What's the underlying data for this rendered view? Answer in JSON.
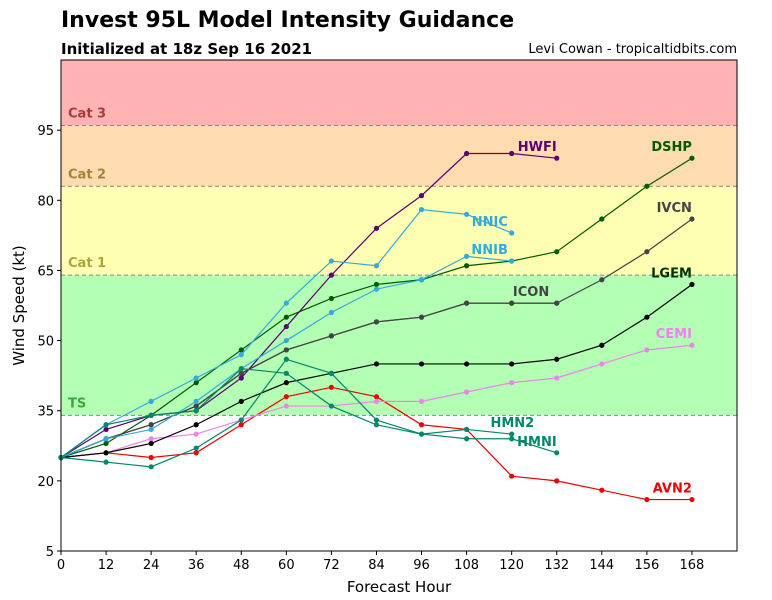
{
  "header": {
    "title": "Invest 95L Model Intensity Guidance",
    "subtitle": "Initialized at 18z Sep 16 2021",
    "credit": "Levi Cowan - tropicaltidbits.com"
  },
  "chart_data": {
    "type": "line",
    "xlabel": "Forecast Hour",
    "ylabel": "Wind Speed (kt)",
    "xlim": [
      0,
      180
    ],
    "ylim": [
      5,
      110
    ],
    "xticks": [
      0,
      12,
      24,
      36,
      48,
      60,
      72,
      84,
      96,
      108,
      120,
      132,
      144,
      156,
      168
    ],
    "yticks": [
      5,
      20,
      35,
      50,
      65,
      80,
      95
    ],
    "grid": false,
    "bands": [
      {
        "label": "TS",
        "from": 34,
        "to": 64,
        "color": "#b3ffb3",
        "label_color": "#3aa83a"
      },
      {
        "label": "Cat 1",
        "from": 64,
        "to": 83,
        "color": "#ffffb3",
        "label_color": "#a8a83a"
      },
      {
        "label": "Cat 2",
        "from": 83,
        "to": 96,
        "color": "#ffdcb0",
        "label_color": "#a8803a"
      },
      {
        "label": "Cat 3",
        "from": 96,
        "to": 110,
        "color": "#ffb3b3",
        "label_color": "#a83a3a"
      }
    ],
    "series": [
      {
        "name": "AVN2",
        "color": "#ee0000",
        "x": [
          0,
          12,
          24,
          36,
          48,
          60,
          72,
          84,
          96,
          108,
          120,
          132,
          144,
          156,
          168
        ],
        "y": [
          25,
          26,
          25,
          26,
          32,
          38,
          40,
          38,
          32,
          31,
          21,
          20,
          18,
          16,
          16
        ]
      },
      {
        "name": "CEMI",
        "color": "#ee82ee",
        "x": [
          0,
          12,
          24,
          36,
          48,
          60,
          72,
          84,
          96,
          108,
          120,
          132,
          144,
          156,
          168
        ],
        "y": [
          25,
          26,
          29,
          30,
          33,
          36,
          36,
          37,
          37,
          39,
          41,
          42,
          45,
          48,
          49
        ]
      },
      {
        "name": "LGEM",
        "color": "#000000",
        "x": [
          0,
          12,
          24,
          36,
          48,
          60,
          72,
          84,
          96,
          108,
          120,
          132,
          144,
          156,
          168
        ],
        "y": [
          25,
          26,
          28,
          32,
          37,
          41,
          43,
          45,
          45,
          45,
          45,
          46,
          49,
          55,
          62
        ]
      },
      {
        "name": "DSHP",
        "color": "#005a00",
        "x": [
          0,
          12,
          24,
          36,
          48,
          60,
          72,
          84,
          96,
          108,
          120,
          132,
          144,
          156,
          168
        ],
        "y": [
          25,
          28,
          34,
          41,
          48,
          55,
          59,
          62,
          63,
          66,
          67,
          69,
          76,
          83,
          89
        ]
      },
      {
        "name": "IVCN",
        "color": "#444444",
        "x": [
          0,
          12,
          24,
          36,
          48,
          60,
          72,
          84,
          96,
          108,
          120,
          132,
          144,
          156,
          168
        ],
        "y": [
          25,
          29,
          32,
          36,
          43,
          48,
          51,
          54,
          55,
          58,
          58,
          58,
          63,
          69,
          76
        ]
      },
      {
        "name": "ICON",
        "color": "#444444",
        "x": [
          0,
          12,
          24,
          36,
          48,
          60,
          72,
          84,
          96,
          108,
          120,
          132
        ],
        "y": [
          25,
          29,
          32,
          36,
          43,
          48,
          51,
          54,
          55,
          58,
          58,
          58
        ]
      },
      {
        "name": "HWFI",
        "color": "#5a0070",
        "x": [
          0,
          12,
          24,
          36,
          48,
          60,
          72,
          84,
          96,
          108,
          120,
          132
        ],
        "y": [
          25,
          31,
          34,
          35,
          42,
          53,
          64,
          74,
          81,
          90,
          90,
          89
        ]
      },
      {
        "name": "NNIC",
        "color": "#33aadd",
        "x": [
          0,
          12,
          24,
          36,
          48,
          60,
          72,
          84,
          96,
          108,
          120
        ],
        "y": [
          25,
          32,
          37,
          42,
          47,
          58,
          67,
          66,
          78,
          77,
          73
        ]
      },
      {
        "name": "NNIB",
        "color": "#33aadd",
        "x": [
          0,
          12,
          24,
          36,
          48,
          60,
          72,
          84,
          96,
          108,
          120
        ],
        "y": [
          25,
          29,
          31,
          37,
          44,
          50,
          56,
          61,
          63,
          68,
          67
        ]
      },
      {
        "name": "HMN2",
        "color": "#00886a",
        "x": [
          0,
          12,
          24,
          36,
          48,
          60,
          72,
          84,
          96,
          108,
          120
        ],
        "y": [
          25,
          32,
          34,
          35,
          44,
          43,
          36,
          32,
          30,
          31,
          30
        ]
      },
      {
        "name": "HMNI",
        "color": "#00886a",
        "x": [
          0,
          12,
          24,
          36,
          48,
          60,
          72,
          84,
          96,
          108,
          120,
          132
        ],
        "y": [
          25,
          24,
          23,
          27,
          33,
          46,
          43,
          33,
          30,
          29,
          29,
          26
        ]
      }
    ],
    "series_labels": [
      {
        "name": "HWFI",
        "x": 132,
        "y": 90.5,
        "anchor": "end",
        "color": "#5a0070"
      },
      {
        "name": "DSHP",
        "x": 168,
        "y": 90.5,
        "anchor": "end",
        "color": "#005a00"
      },
      {
        "name": "IVCN",
        "x": 168,
        "y": 77.5,
        "anchor": "end",
        "color": "#444444"
      },
      {
        "name": "NNIC",
        "x": 119,
        "y": 74.5,
        "anchor": "end",
        "color": "#33aadd"
      },
      {
        "name": "NNIB",
        "x": 119,
        "y": 68.5,
        "anchor": "end",
        "color": "#33aadd"
      },
      {
        "name": "ICON",
        "x": 130,
        "y": 59.5,
        "anchor": "end",
        "color": "#444444"
      },
      {
        "name": "LGEM",
        "x": 168,
        "y": 63.5,
        "anchor": "end",
        "color": "#003300"
      },
      {
        "name": "CEMI",
        "x": 168,
        "y": 50.5,
        "anchor": "end",
        "color": "#ee82ee"
      },
      {
        "name": "HMN2",
        "x": 126,
        "y": 31.5,
        "anchor": "end",
        "color": "#00886a"
      },
      {
        "name": "HMNI",
        "x": 132,
        "y": 27.5,
        "anchor": "end",
        "color": "#00886a"
      },
      {
        "name": "AVN2",
        "x": 168,
        "y": 17.5,
        "anchor": "end",
        "color": "#ee0000"
      }
    ]
  }
}
